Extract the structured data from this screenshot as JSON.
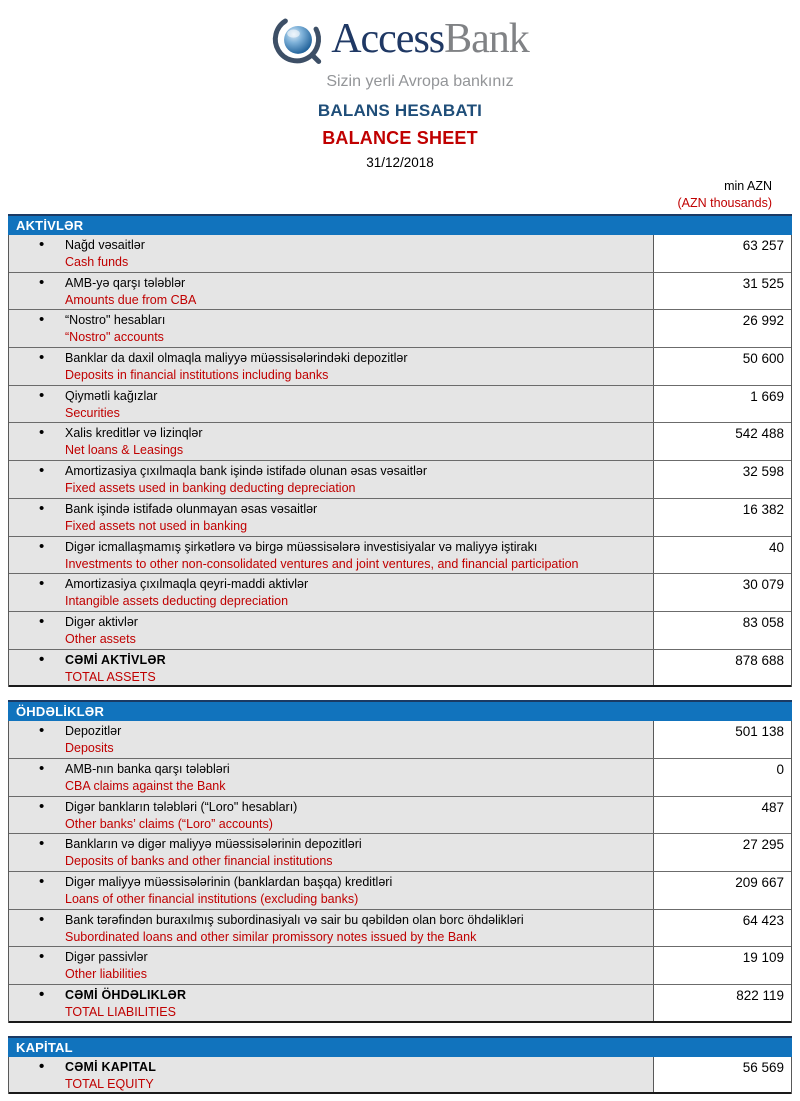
{
  "logo": {
    "brand_access": "Access",
    "brand_bank": "Bank",
    "tagline": "Sizin yerli Avropa bankınız"
  },
  "header": {
    "title_az": "BALANS HESABATI",
    "title_en": "BALANCE SHEET",
    "date": "31/12/2018",
    "unit_az": "min AZN",
    "unit_en": "(AZN thousands)"
  },
  "colors": {
    "bar_blue": "#1173bd",
    "bar_border_navy": "#1b3a64",
    "title_blue": "#1f4e79",
    "accent_red": "#c00000",
    "logo_navy": "#1f3864",
    "logo_gray": "#808285",
    "row_gray": "#e5e5e5"
  },
  "sections": [
    {
      "title": "AKTİVLƏR",
      "rows": [
        {
          "az": "Nağd vəsaitlər",
          "en": "Cash funds",
          "value": "63 257",
          "bold": false
        },
        {
          "az": "AMB-yə qarşı tələblər",
          "en": "Amounts due from CBA",
          "value": "31 525",
          "bold": false
        },
        {
          "az": "“Nostro\" hesabları",
          "en": "“Nostro\" accounts",
          "value": "26 992",
          "bold": false
        },
        {
          "az": "Banklar da daxil olmaqla maliyyə müəssisələrindəki depozitlər",
          "en": "Deposits in financial institutions including banks",
          "value": "50 600",
          "bold": false
        },
        {
          "az": "Qiymətli kağızlar",
          "en": "Securities",
          "value": "1 669",
          "bold": false
        },
        {
          "az": "Xalis kreditlər və lizinqlər",
          "en": "Net loans & Leasings",
          "value": "542 488",
          "bold": false
        },
        {
          "az": "Amortizasiya çıxılmaqla bank işində istifadə olunan əsas vəsaitlər",
          "en": "Fixed assets used in banking deducting depreciation",
          "value": "32 598",
          "bold": false
        },
        {
          "az": "Bank işində istifadə olunmayan əsas vəsaitlər",
          "en": "Fixed assets not used in banking",
          "value": "16 382",
          "bold": false
        },
        {
          "az": "Digər icmallaşmamış şirkətlərə və birgə müəssisələrə investisiyalar və maliyyə iştirakı",
          "en": "Investments to other non-consolidated ventures and joint ventures, and financial participation",
          "value": "40",
          "bold": false
        },
        {
          "az": "Amortizasiya çıxılmaqla qeyri-maddi aktivlər",
          "en": "Intangible assets deducting depreciation",
          "value": "30 079",
          "bold": false
        },
        {
          "az": "Digər aktivlər",
          "en": "Other assets",
          "value": "83 058",
          "bold": false
        },
        {
          "az": "CƏMİ AKTİVLƏR",
          "en": "TOTAL ASSETS",
          "value": "878 688",
          "bold": true
        }
      ]
    },
    {
      "title": "ÖHDƏLİKLƏR",
      "rows": [
        {
          "az": "Depozitlər",
          "en": "Deposits",
          "value": "501 138",
          "bold": false
        },
        {
          "az": "AMB-nın banka qarşı tələbləri",
          "en": "CBA claims against the Bank",
          "value": "0",
          "bold": false
        },
        {
          "az": "Digər bankların tələbləri (“Loro\" hesabları)",
          "en": "Other banks’ claims (“Loro” accounts)",
          "value": "487",
          "bold": false
        },
        {
          "az": "Bankların və digər maliyyə müəssisələrinin depozitləri",
          "en": "Deposits of banks and other financial institutions",
          "value": "27 295",
          "bold": false
        },
        {
          "az": "Digər maliyyə müəssisələrinin (banklardan başqa) kreditləri",
          "en": "Loans of other financial institutions (excluding banks)",
          "value": "209 667",
          "bold": false
        },
        {
          "az": "Bank tərəfindən buraxılmış subordinasiyalı və sair bu qəbildən olan borc öhdəlikləri",
          "en": "Subordinated loans and other similar promissory notes issued by the Bank",
          "value": "64 423",
          "bold": false
        },
        {
          "az": "Digər passivlər",
          "en": "Other liabilities",
          "value": "19 109",
          "bold": false
        },
        {
          "az": "CƏMİ ÖHDƏLIKLƏR",
          "en": "TOTAL LIABILITIES",
          "value": "822 119",
          "bold": true
        }
      ]
    },
    {
      "title": "KAPİTAL",
      "rows": [
        {
          "az": "CƏMİ KAPITAL",
          "en": "TOTAL EQUITY",
          "value": "56 569",
          "bold": true
        }
      ]
    }
  ]
}
